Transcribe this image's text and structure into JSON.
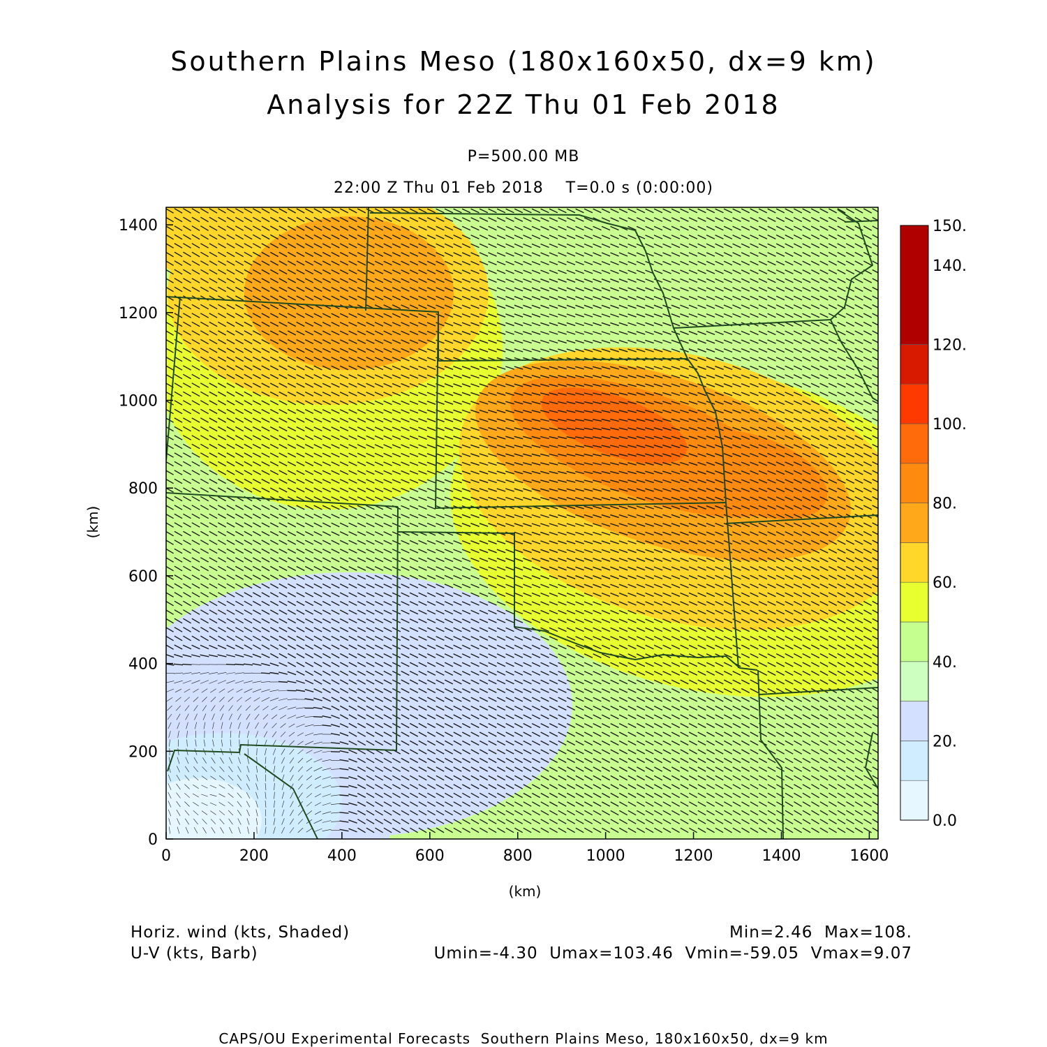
{
  "header": {
    "title_line1": "Southern Plains Meso (180x160x50, dx=9 km)",
    "title_line2": "Analysis for 22Z Thu 01 Feb 2018",
    "level": "P=500.00 MB",
    "valid_time": "22:00 Z Thu 01 Feb 2018    T=0.0 s (0:00:00)"
  },
  "axes": {
    "x_label": "(km)",
    "y_label": "(km)",
    "x_ticks": [
      0,
      200,
      400,
      600,
      800,
      1000,
      1200,
      1400,
      1600
    ],
    "y_ticks": [
      0,
      200,
      400,
      600,
      800,
      1000,
      1200,
      1400
    ],
    "x_range_km": [
      0,
      1620
    ],
    "y_range_km": [
      0,
      1440
    ]
  },
  "colorbar": {
    "labels": [
      "0.0",
      "20.",
      "40.",
      "60.",
      "80.",
      "100.",
      "120.",
      "140.",
      "150."
    ],
    "min": 0,
    "max": 150,
    "colors": [
      "#e6f7ff",
      "#d0ecff",
      "#d4e0ff",
      "#ccffc0",
      "#c4ff90",
      "#e8ff30",
      "#ffd62a",
      "#ffa81a",
      "#ff8a10",
      "#ff6a0a",
      "#ff3a00",
      "#d81a00",
      "#b00000"
    ]
  },
  "footer": {
    "shade_label": "Horiz. wind (kts, Shaded)",
    "barb_label": "U-V (kts, Barb)",
    "minmax": "Min=2.46  Max=108.",
    "uv_minmax": "Umin=-4.30  Umax=103.46  Vmin=-59.05  Vmax=9.07",
    "credit": "CAPS/OU Experimental Forecasts  Southern Plains Meso, 180x160x50, dx=9 km"
  },
  "field": {
    "name": "Horiz. wind speed",
    "units": "kts",
    "jet_max_km": [
      950,
      930
    ],
    "weak_region_km": [
      100,
      100
    ]
  }
}
